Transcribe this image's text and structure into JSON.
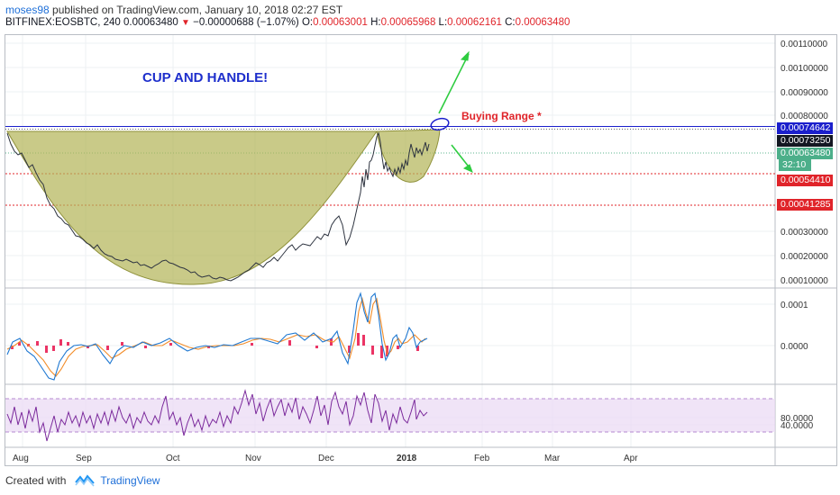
{
  "header": {
    "user": "moses98",
    "published": "published on TradingView.com, January 10, 2018 02:27 EST",
    "symbol": "BITFINEX:EOSBTC, 240",
    "last": "0.00063480",
    "change_arrow": "▼",
    "change": "−0.00000688 (−1.07%)",
    "o_label": "O:",
    "o_value": "0.00063001",
    "h_label": "H:",
    "h_value": "0.00065968",
    "l_label": "L:",
    "l_value": "0.00062161",
    "c_label": "C:",
    "c_value": "0.00063480"
  },
  "annotations": {
    "title": "CUP AND HANDLE!",
    "buying_range": "Buying Range *"
  },
  "price_axis": {
    "ticks": [
      "0.00110000",
      "0.00100000",
      "0.00090000",
      "0.00080000",
      "0.00030000",
      "0.00020000",
      "0.00010000"
    ],
    "tags": {
      "blue": "0.00074642",
      "black": "0.00073250",
      "green": "0.00063480",
      "countdown": "32:10",
      "red1": "0.00054410",
      "red2": "0.00041285"
    }
  },
  "macd_axis": {
    "ticks": [
      "0.0001",
      "0.0000"
    ]
  },
  "rsi_axis": {
    "ticks": [
      "80.0000",
      "40.0000"
    ]
  },
  "time_axis": {
    "labels": [
      "Aug",
      "Sep",
      "Oct",
      "Nov",
      "Dec",
      "2018",
      "Feb",
      "Mar",
      "Apr"
    ]
  },
  "footer": {
    "created_with": "Created with",
    "brand": "TradingView"
  },
  "colors": {
    "cup_fill": "#b4b55a",
    "cup_stroke": "#8f913a",
    "candle_line": "#2e3440",
    "macd_line": "#1f78d1",
    "signal_line": "#f28c28",
    "hist": "#e8114b",
    "rsi_line": "#7b2a9c",
    "rsi_band": "#e9d8f4",
    "arrow": "#2ecc40",
    "title_blue": "#1e2fcc",
    "buy_red": "#e0242a"
  },
  "icons": {
    "tradingview_logo": "tradingview-logo-icon"
  }
}
